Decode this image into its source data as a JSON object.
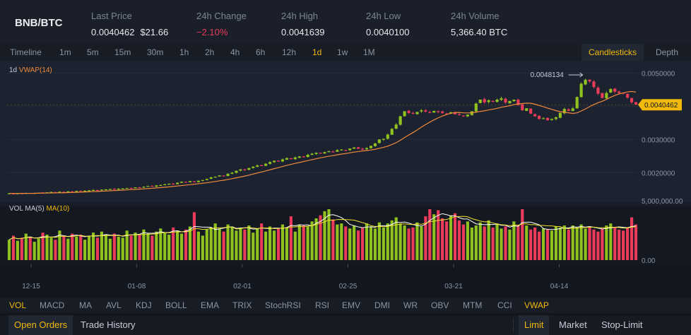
{
  "header": {
    "pair": "BNB/BTC",
    "last_price": {
      "label": "Last Price",
      "value": "0.0040462",
      "usd": "$21.66"
    },
    "change": {
      "label": "24h Change",
      "value": "−2.10%"
    },
    "high": {
      "label": "24h High",
      "value": "0.0041639"
    },
    "low": {
      "label": "24h Low",
      "value": "0.0040100"
    },
    "volume": {
      "label": "24h Volume",
      "value": "5,366.40 BTC"
    }
  },
  "toolbar": {
    "intervals": [
      "Timeline",
      "1m",
      "5m",
      "15m",
      "30m",
      "1h",
      "2h",
      "4h",
      "6h",
      "12h",
      "1d",
      "1w",
      "1M"
    ],
    "active_interval": "1d",
    "views": [
      "Candlesticks",
      "Depth"
    ],
    "active_view": "Candlesticks"
  },
  "indicators_legend": {
    "interval": "1d",
    "main": "VWAP(14)",
    "vol": "VOL",
    "ma5": "MA(5)",
    "ma10": "MA(10)"
  },
  "chart_data": {
    "type": "candlestick",
    "price_axis": [
      "0.0050000",
      "0.0040000",
      "0.0030000",
      "0.0020000"
    ],
    "price_range": [
      0.0012,
      0.0052
    ],
    "current_price_label": "0.0040462",
    "max_annotation": "0.0048134",
    "volume_axis": [
      "5,000,000.00",
      "0.00"
    ],
    "x_tick_labels": [
      "12-15",
      "01-08",
      "02-01",
      "02-25",
      "03-21",
      "04-14"
    ],
    "colors": {
      "up": "#8fc21e",
      "down": "#ea3b5a",
      "vwap": "#f08a3c",
      "ma5": "#ffffff",
      "ma10": "#f0e130"
    },
    "closes": [
      0.00138,
      0.00137,
      0.00138,
      0.00138,
      0.00139,
      0.00138,
      0.00139,
      0.0014,
      0.0014,
      0.00141,
      0.00142,
      0.00141,
      0.00143,
      0.00142,
      0.00144,
      0.00143,
      0.00145,
      0.00144,
      0.00146,
      0.00147,
      0.00148,
      0.00146,
      0.00149,
      0.0015,
      0.00151,
      0.00149,
      0.00152,
      0.00153,
      0.00154,
      0.00153,
      0.00156,
      0.00155,
      0.00158,
      0.0016,
      0.00159,
      0.00162,
      0.00163,
      0.00165,
      0.00167,
      0.00166,
      0.0017,
      0.00173,
      0.00171,
      0.00175,
      0.00172,
      0.00176,
      0.00178,
      0.00181,
      0.00186,
      0.00188,
      0.00192,
      0.0019,
      0.00197,
      0.002,
      0.00206,
      0.0021,
      0.00208,
      0.00214,
      0.00218,
      0.00222,
      0.0022,
      0.00227,
      0.00232,
      0.00236,
      0.00234,
      0.0024,
      0.00244,
      0.00242,
      0.00246,
      0.00249,
      0.00248,
      0.00254,
      0.00257,
      0.0026,
      0.00258,
      0.00262,
      0.00265,
      0.00263,
      0.00268,
      0.0027,
      0.00267,
      0.00273,
      0.00276,
      0.00272,
      0.00271,
      0.00274,
      0.00281,
      0.00288,
      0.003,
      0.00302,
      0.00315,
      0.00332,
      0.00345,
      0.0037,
      0.00385,
      0.0038,
      0.00378,
      0.00383,
      0.00388,
      0.00384,
      0.00382,
      0.00386,
      0.00383,
      0.0038,
      0.00378,
      0.00382,
      0.00376,
      0.00374,
      0.0037,
      0.00375,
      0.00385,
      0.00408,
      0.0042,
      0.00412,
      0.00418,
      0.00415,
      0.0042,
      0.00424,
      0.00411,
      0.00416,
      0.0042,
      0.00404,
      0.00388,
      0.00394,
      0.00378,
      0.0037,
      0.00362,
      0.00364,
      0.00358,
      0.00362,
      0.00367,
      0.0038,
      0.00392,
      0.00386,
      0.00394,
      0.00428,
      0.00468,
      0.0048,
      0.00475,
      0.00458,
      0.00438,
      0.00425,
      0.0044,
      0.00452,
      0.00444,
      0.0044,
      0.00438,
      0.00426,
      0.00412,
      0.00405
    ],
    "volumes": [
      2.0,
      2.4,
      1.9,
      2.2,
      2.6,
      2.3,
      1.8,
      2.1,
      2.7,
      2.5,
      2.2,
      2.0,
      2.9,
      2.4,
      2.1,
      2.6,
      2.3,
      2.5,
      2.0,
      2.4,
      2.7,
      2.2,
      2.8,
      2.5,
      2.1,
      2.6,
      2.3,
      2.2,
      2.9,
      2.4,
      2.7,
      2.5,
      3.0,
      2.6,
      2.4,
      2.8,
      3.1,
      2.7,
      2.5,
      3.2,
      2.9,
      2.6,
      3.0,
      3.3,
      4.7,
      2.8,
      2.4,
      3.0,
      3.2,
      3.6,
      3.1,
      2.8,
      3.5,
      3.3,
      2.9,
      3.2,
      3.0,
      3.4,
      2.7,
      3.1,
      3.6,
      2.8,
      3.3,
      2.9,
      3.1,
      3.5,
      3.2,
      4.3,
      2.8,
      3.5,
      3.4,
      3.3,
      3.8,
      4.1,
      4.4,
      4.8,
      5.0,
      4.0,
      3.5,
      3.6,
      3.3,
      3.1,
      3.4,
      2.9,
      3.2,
      3.6,
      3.3,
      3.1,
      3.7,
      3.2,
      3.6,
      3.9,
      4.2,
      3.6,
      3.4,
      3.1,
      3.2,
      3.7,
      3.3,
      4.3,
      5.0,
      4.5,
      4.9,
      4.1,
      3.8,
      4.4,
      4.6,
      3.9,
      3.5,
      3.8,
      3.2,
      3.4,
      3.7,
      3.3,
      3.9,
      3.2,
      3.6,
      3.1,
      3.3,
      3.0,
      3.8,
      3.4,
      5.0,
      3.4,
      3.0,
      3.2,
      2.8,
      3.1,
      3.0,
      2.9,
      3.3,
      3.2,
      3.4,
      3.0,
      3.4,
      3.2,
      3.5,
      3.1,
      3.3,
      3.0,
      2.8,
      3.1,
      3.4,
      3.6,
      3.2,
      3.0,
      2.9,
      3.2,
      4.2,
      3.5
    ],
    "volume_unit": "millions"
  },
  "indicator_bar": {
    "items": [
      "VOL",
      "MACD",
      "MA",
      "AVL",
      "KDJ",
      "BOLL",
      "EMA",
      "TRIX",
      "StochRSI",
      "RSI",
      "EMV",
      "DMI",
      "WR",
      "OBV",
      "MTM",
      "CCI",
      "VWAP"
    ],
    "active": [
      "VOL",
      "VWAP"
    ]
  },
  "orders": {
    "tabs": [
      "Open Orders",
      "Trade History"
    ],
    "active_tab": "Open Orders",
    "order_types": [
      "Limit",
      "Market",
      "Stop-Limit"
    ],
    "active_type": "Limit"
  }
}
